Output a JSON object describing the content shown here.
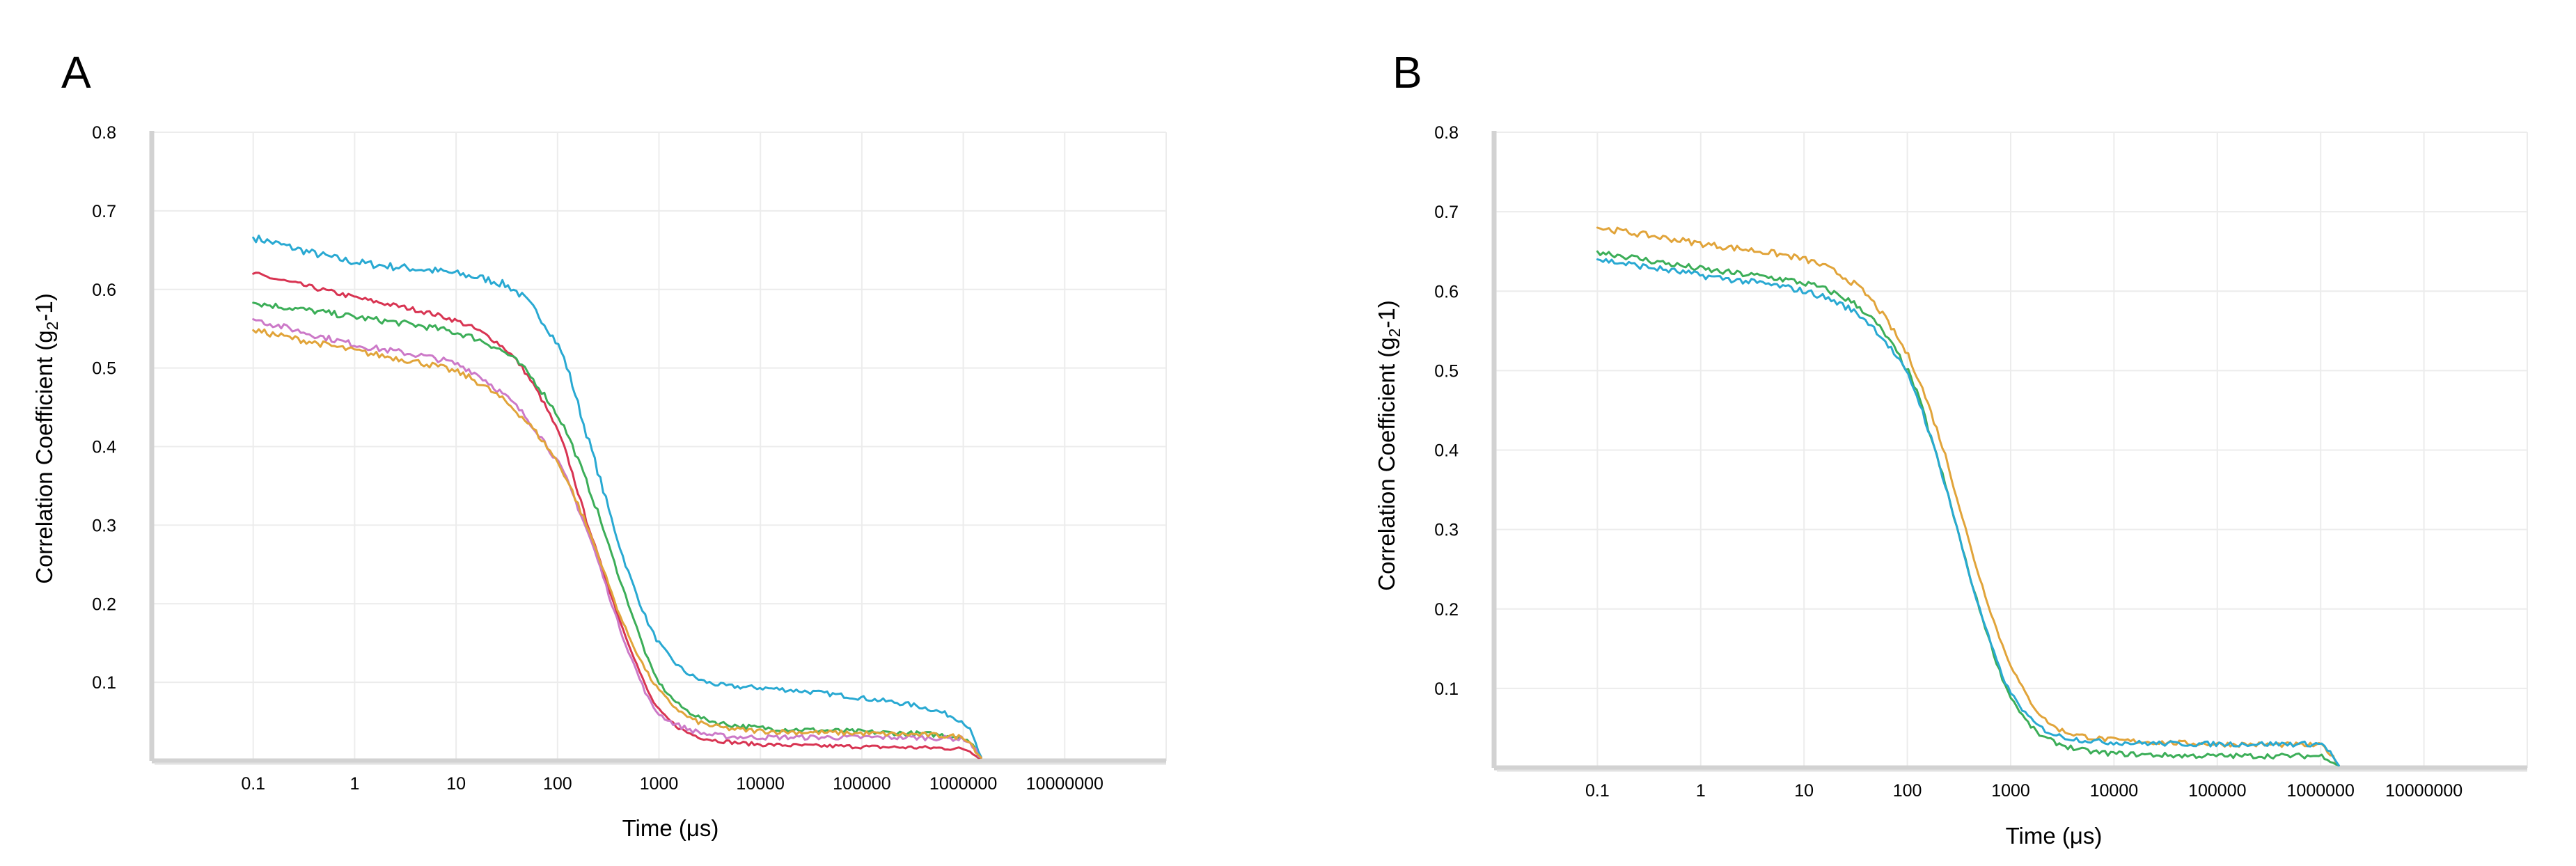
{
  "chart_data": [
    {
      "type": "line",
      "panel_label": "A",
      "xlabel": "Time (μs)",
      "ylabel_main": "Correlation Coefficient (g",
      "ylabel_sub": "2",
      "ylabel_tail": "-1)",
      "x_scale": "log",
      "xlim": [
        0.01,
        100000000
      ],
      "ylim": [
        0,
        0.8
      ],
      "grid": true,
      "legend": "none",
      "x_tick_labels": [
        "0.1",
        "1",
        "10",
        "100",
        "1000",
        "10000",
        "100000",
        "1000000",
        "10000000"
      ],
      "x_tick_values": [
        0.1,
        1,
        10,
        100,
        1000,
        10000,
        100000,
        1000000,
        10000000
      ],
      "y_tick_labels": [
        "0.1",
        "0.2",
        "0.3",
        "0.4",
        "0.5",
        "0.6",
        "0.7",
        "0.8"
      ],
      "y_tick_values": [
        0.1,
        0.2,
        0.3,
        0.4,
        0.5,
        0.6,
        0.7,
        0.8
      ],
      "x": [
        0.1,
        1,
        10,
        30,
        100,
        200,
        500,
        1000,
        2000,
        3000,
        5000,
        10000,
        100000,
        1000000,
        1500000
      ],
      "series": [
        {
          "color": "#29a9d2",
          "noise": 0.005,
          "values": [
            0.666,
            0.635,
            0.62,
            0.606,
            0.53,
            0.41,
            0.24,
            0.15,
            0.11,
            0.1,
            0.095,
            0.093,
            0.08,
            0.05,
            0.005
          ]
        },
        {
          "color": "#d83452",
          "noise": 0.003,
          "values": [
            0.62,
            0.59,
            0.56,
            0.525,
            0.42,
            0.3,
            0.15,
            0.065,
            0.035,
            0.028,
            0.024,
            0.021,
            0.018,
            0.015,
            0.004
          ]
        },
        {
          "color": "#3cae58",
          "noise": 0.004,
          "values": [
            0.583,
            0.565,
            0.545,
            0.52,
            0.44,
            0.35,
            0.2,
            0.1,
            0.062,
            0.052,
            0.046,
            0.042,
            0.037,
            0.03,
            0.004
          ]
        },
        {
          "color": "#cc79c8",
          "noise": 0.004,
          "values": [
            0.562,
            0.53,
            0.505,
            0.465,
            0.38,
            0.29,
            0.14,
            0.06,
            0.04,
            0.034,
            0.031,
            0.03,
            0.03,
            0.028,
            0.004
          ]
        },
        {
          "color": "#e1a43a",
          "noise": 0.004,
          "values": [
            0.548,
            0.522,
            0.495,
            0.458,
            0.38,
            0.295,
            0.16,
            0.09,
            0.055,
            0.046,
            0.041,
            0.038,
            0.035,
            0.03,
            0.004
          ]
        }
      ]
    },
    {
      "type": "line",
      "panel_label": "B",
      "xlabel": "Time (μs)",
      "ylabel_main": "Correlation Coefficient (g",
      "ylabel_sub": "2",
      "ylabel_tail": "-1)",
      "x_scale": "log",
      "xlim": [
        0.01,
        100000000
      ],
      "ylim": [
        0,
        0.8
      ],
      "grid": true,
      "legend": "none",
      "x_tick_labels": [
        "0.1",
        "1",
        "10",
        "100",
        "1000",
        "10000",
        "100000",
        "1000000",
        "10000000"
      ],
      "x_tick_values": [
        0.1,
        1,
        10,
        100,
        1000,
        10000,
        100000,
        1000000,
        10000000
      ],
      "y_tick_labels": [
        "0.1",
        "0.2",
        "0.3",
        "0.4",
        "0.5",
        "0.6",
        "0.7",
        "0.8"
      ],
      "y_tick_values": [
        0.1,
        0.2,
        0.3,
        0.4,
        0.5,
        0.6,
        0.7,
        0.8
      ],
      "x": [
        0.1,
        1,
        10,
        30,
        100,
        200,
        500,
        1000,
        2000,
        3000,
        5000,
        10000,
        100000,
        1000000,
        1500000
      ],
      "series": [
        {
          "color": "#e1a43a",
          "noise": 0.004,
          "values": [
            0.68,
            0.66,
            0.64,
            0.61,
            0.52,
            0.42,
            0.24,
            0.13,
            0.065,
            0.048,
            0.04,
            0.035,
            0.03,
            0.028,
            0.003
          ]
        },
        {
          "color": "#3cae58",
          "noise": 0.004,
          "values": [
            0.65,
            0.628,
            0.61,
            0.585,
            0.5,
            0.385,
            0.2,
            0.09,
            0.04,
            0.03,
            0.022,
            0.018,
            0.015,
            0.015,
            0.003
          ]
        },
        {
          "color": "#29a9d2",
          "noise": 0.004,
          "values": [
            0.64,
            0.62,
            0.6,
            0.575,
            0.495,
            0.385,
            0.2,
            0.095,
            0.05,
            0.04,
            0.035,
            0.032,
            0.03,
            0.03,
            0.003
          ]
        }
      ]
    }
  ]
}
